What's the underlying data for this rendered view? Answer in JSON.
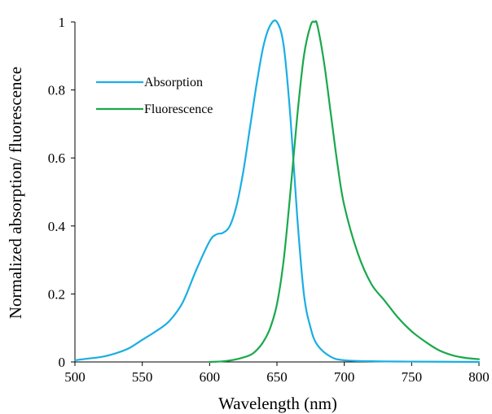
{
  "chart_data": {
    "type": "line",
    "title": "",
    "xlabel": "Wavelength (nm)",
    "ylabel": "Normalized absorption/ fluorescence",
    "xlim": [
      500,
      800
    ],
    "ylim": [
      0,
      1
    ],
    "xticks": [
      "500",
      "550",
      "600",
      "650",
      "700",
      "750",
      "800"
    ],
    "yticks": [
      "0",
      "0.2",
      "0.4",
      "0.6",
      "0.8",
      "1"
    ],
    "grid": false,
    "legend_position": "top-left",
    "series": [
      {
        "name": "Absorption",
        "color": "#1aaee3",
        "x": [
          500,
          510,
          520,
          530,
          540,
          550,
          560,
          570,
          580,
          590,
          600,
          605,
          610,
          615,
          620,
          625,
          630,
          635,
          640,
          645,
          650,
          655,
          660,
          665,
          670,
          675,
          680,
          690,
          700,
          720,
          750,
          800
        ],
        "y": [
          0.005,
          0.01,
          0.015,
          0.025,
          0.04,
          0.065,
          0.09,
          0.12,
          0.175,
          0.27,
          0.355,
          0.375,
          0.38,
          0.4,
          0.46,
          0.56,
          0.69,
          0.82,
          0.93,
          0.99,
          1.0,
          0.93,
          0.72,
          0.43,
          0.2,
          0.1,
          0.05,
          0.015,
          0.005,
          0.002,
          0.001,
          0.0
        ]
      },
      {
        "name": "Fluorescence",
        "color": "#1aa84b",
        "x": [
          600,
          610,
          620,
          630,
          635,
          640,
          645,
          650,
          655,
          660,
          665,
          670,
          675,
          678,
          680,
          685,
          690,
          695,
          700,
          710,
          720,
          730,
          740,
          750,
          760,
          770,
          780,
          790,
          800
        ],
        "y": [
          0.0,
          0.002,
          0.008,
          0.02,
          0.035,
          0.06,
          0.1,
          0.17,
          0.3,
          0.5,
          0.72,
          0.9,
          0.99,
          1.0,
          0.99,
          0.88,
          0.73,
          0.58,
          0.46,
          0.32,
          0.23,
          0.18,
          0.13,
          0.09,
          0.06,
          0.035,
          0.02,
          0.012,
          0.008
        ]
      }
    ]
  }
}
